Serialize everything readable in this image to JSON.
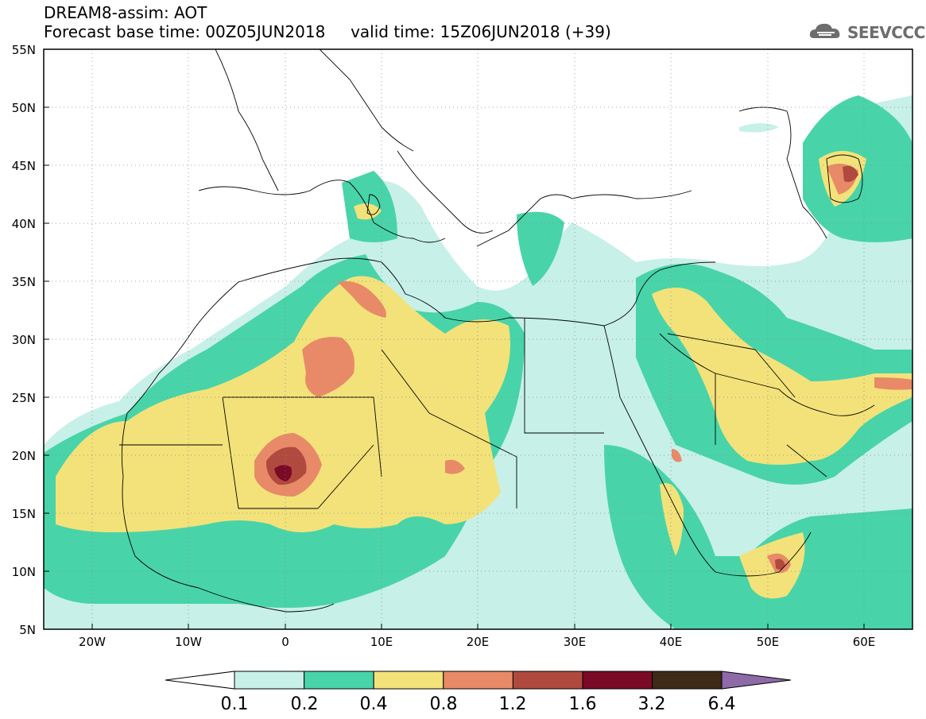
{
  "header": {
    "title_line1": "DREAM8-assim: AOT",
    "title_line2": "Forecast base time: 00Z05JUN2018     valid time: 15Z06JUN2018 (+39)",
    "logo_text": "SEEVCCC"
  },
  "map": {
    "lat_labels": [
      "55N",
      "50N",
      "45N",
      "40N",
      "35N",
      "30N",
      "25N",
      "20N",
      "15N",
      "10N",
      "5N"
    ],
    "lon_labels": [
      "20W",
      "10W",
      "0",
      "10E",
      "20E",
      "30E",
      "40E",
      "50E",
      "60E"
    ]
  },
  "colorbar": {
    "labels": [
      "0.1",
      "0.2",
      "0.4",
      "0.8",
      "1.2",
      "1.6",
      "3.2",
      "6.4"
    ],
    "colors": [
      "#c7f0e8",
      "#48d4a8",
      "#f3e27a",
      "#e88a68",
      "#b04a3e",
      "#7a0a26",
      "#3f2a18"
    ],
    "over_color": "#8e6aa8"
  },
  "field_colors": {
    "c1": "#c7f0e8",
    "c2": "#48d4a8",
    "c3": "#f3e27a",
    "c4": "#e88a68",
    "c5": "#b04a3e",
    "c6": "#7a0a26"
  }
}
